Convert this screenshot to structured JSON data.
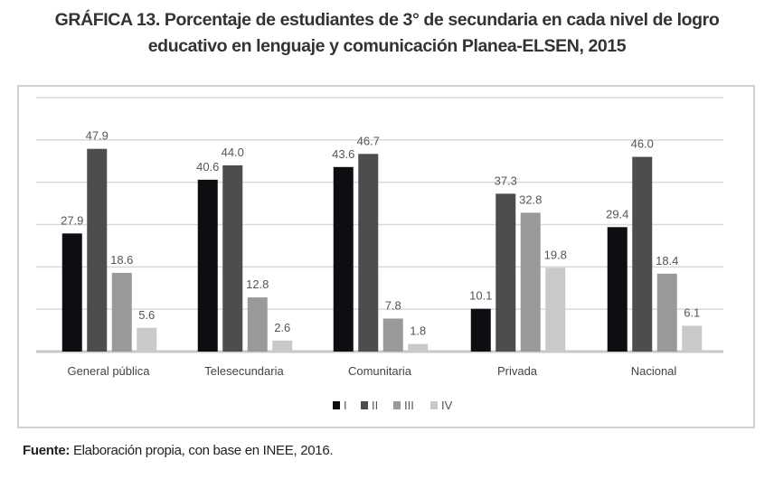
{
  "title_line1": "GRÁFICA 13. Porcentaje de estudiantes de 3° de secundaria en cada nivel de logro",
  "title_line2": "educativo en lenguaje y comunicación Planea-ELSEN, 2015",
  "source_label": "Fuente:",
  "source_text": " Elaboración propia, con base en INEE, 2016.",
  "chart_data": {
    "type": "bar",
    "title": "GRÁFICA 13. Porcentaje de estudiantes de 3° de secundaria en cada nivel de logro educativo en lenguaje y comunicación Planea-ELSEN, 2015",
    "categories": [
      "General pública",
      "Telesecundaria",
      "Comunitaria",
      "Privada",
      "Nacional"
    ],
    "series": [
      {
        "name": "I",
        "color": "#0d0d12",
        "values": [
          27.9,
          40.6,
          43.6,
          10.1,
          29.4
        ]
      },
      {
        "name": "II",
        "color": "#4d4d4f",
        "values": [
          47.9,
          44.0,
          46.7,
          37.3,
          46.0
        ]
      },
      {
        "name": "III",
        "color": "#999999",
        "values": [
          18.6,
          12.8,
          7.8,
          32.8,
          18.4
        ]
      },
      {
        "name": "IV",
        "color": "#c9c9c9",
        "values": [
          5.6,
          2.6,
          1.8,
          19.8,
          6.1
        ]
      }
    ],
    "ylim": [
      0,
      60
    ],
    "grid": true,
    "legend": "bottom",
    "xlabel": "",
    "ylabel": ""
  }
}
